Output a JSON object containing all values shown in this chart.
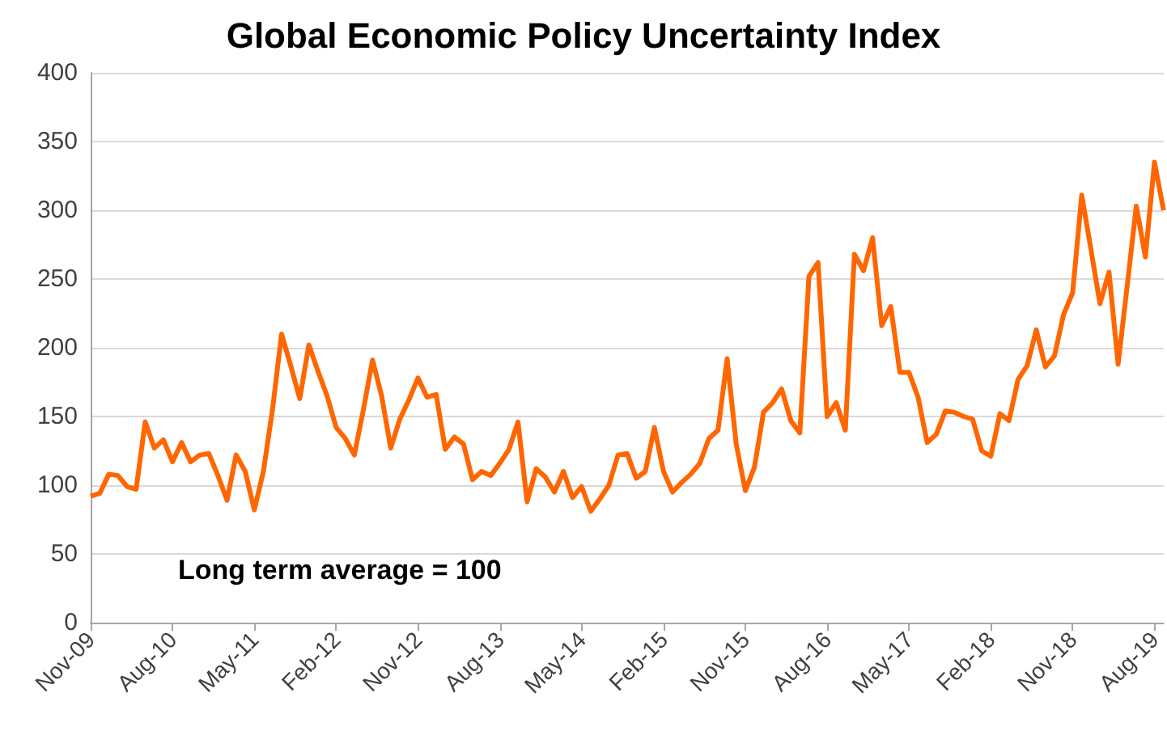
{
  "chart_data": {
    "type": "line",
    "title": "Global Economic Policy Uncertainty Index",
    "categories": [
      "Nov-09",
      null,
      null,
      null,
      null,
      null,
      null,
      null,
      null,
      "Aug-10",
      null,
      null,
      null,
      null,
      null,
      null,
      null,
      null,
      "May-11",
      null,
      null,
      null,
      null,
      null,
      null,
      null,
      null,
      "Feb-12",
      null,
      null,
      null,
      null,
      null,
      null,
      null,
      null,
      "Nov-12",
      null,
      null,
      null,
      null,
      null,
      null,
      null,
      null,
      "Aug-13",
      null,
      null,
      null,
      null,
      null,
      null,
      null,
      null,
      "May-14",
      null,
      null,
      null,
      null,
      null,
      null,
      null,
      null,
      "Feb-15",
      null,
      null,
      null,
      null,
      null,
      null,
      null,
      null,
      "Nov-15",
      null,
      null,
      null,
      null,
      null,
      null,
      null,
      null,
      "Aug-16",
      null,
      null,
      null,
      null,
      null,
      null,
      null,
      null,
      "May-17",
      null,
      null,
      null,
      null,
      null,
      null,
      null,
      null,
      "Feb-18",
      null,
      null,
      null,
      null,
      null,
      null,
      null,
      null,
      "Nov-18",
      null,
      null,
      null,
      null,
      null,
      null,
      null,
      null,
      "Aug-19",
      null
    ],
    "series": [
      {
        "color": "#ff6600",
        "values": [
          92,
          94,
          108,
          107,
          99,
          97,
          146,
          127,
          133,
          117,
          131,
          117,
          122,
          123,
          107,
          89,
          122,
          110,
          82,
          110,
          155,
          210,
          187,
          163,
          202,
          183,
          165,
          142,
          134,
          122,
          155,
          191,
          165,
          127,
          148,
          162,
          178,
          164,
          166,
          126,
          135,
          130,
          104,
          110,
          107,
          116,
          126,
          146,
          88,
          112,
          106,
          95,
          110,
          91,
          99,
          81,
          90,
          100,
          122,
          123,
          105,
          110,
          142,
          110,
          95,
          102,
          108,
          116,
          134,
          140,
          192,
          130,
          96,
          113,
          153,
          160,
          170,
          147,
          138,
          252,
          262,
          150,
          160,
          140,
          268,
          256,
          280,
          216,
          230,
          182,
          182,
          164,
          131,
          137,
          154,
          153,
          150,
          148,
          125,
          121,
          152,
          147,
          177,
          187,
          213,
          186,
          194,
          224,
          240,
          311,
          272,
          232,
          255,
          188,
          245,
          303,
          266,
          335,
          300
        ]
      }
    ],
    "ylim": [
      0,
      400
    ],
    "yticks": [
      0,
      50,
      100,
      150,
      200,
      250,
      300,
      350,
      400
    ],
    "grid": "y",
    "marker": "none",
    "line_style": "solid",
    "annotations": [
      "Long term average = 100"
    ]
  }
}
